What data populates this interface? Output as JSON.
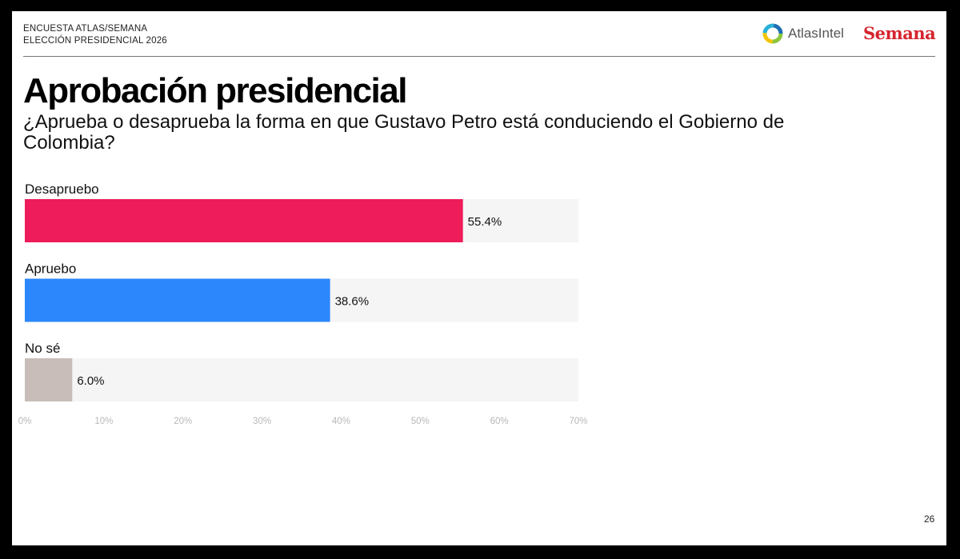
{
  "header": {
    "survey_line1": "ENCUESTA ATLAS/SEMANA",
    "survey_line2": "ELECCIÓN PRESIDENCIAL 2026",
    "brand_atlas": "AtlasIntel",
    "brand_semana": "Semana"
  },
  "title": "Aprobación presidencial",
  "subtitle": "¿Aprueba o desaprueba la forma en que Gustavo Petro está conduciendo el Gobierno de Colombia?",
  "chart_data": {
    "type": "bar",
    "orientation": "horizontal",
    "categories": [
      "Desapruebo",
      "Apruebo",
      "No sé"
    ],
    "values": [
      55.4,
      38.6,
      6.0
    ],
    "value_labels": [
      "55.4%",
      "38.6%",
      "6.0%"
    ],
    "colors": [
      "#ee1c5a",
      "#2b87fb",
      "#c8bdb9"
    ],
    "xlim": [
      0,
      70
    ],
    "x_ticks": [
      "0%",
      "10%",
      "20%",
      "30%",
      "40%",
      "50%",
      "60%",
      "70%"
    ],
    "track_color": "#f5f5f5",
    "grid": false
  },
  "page_number": "26"
}
